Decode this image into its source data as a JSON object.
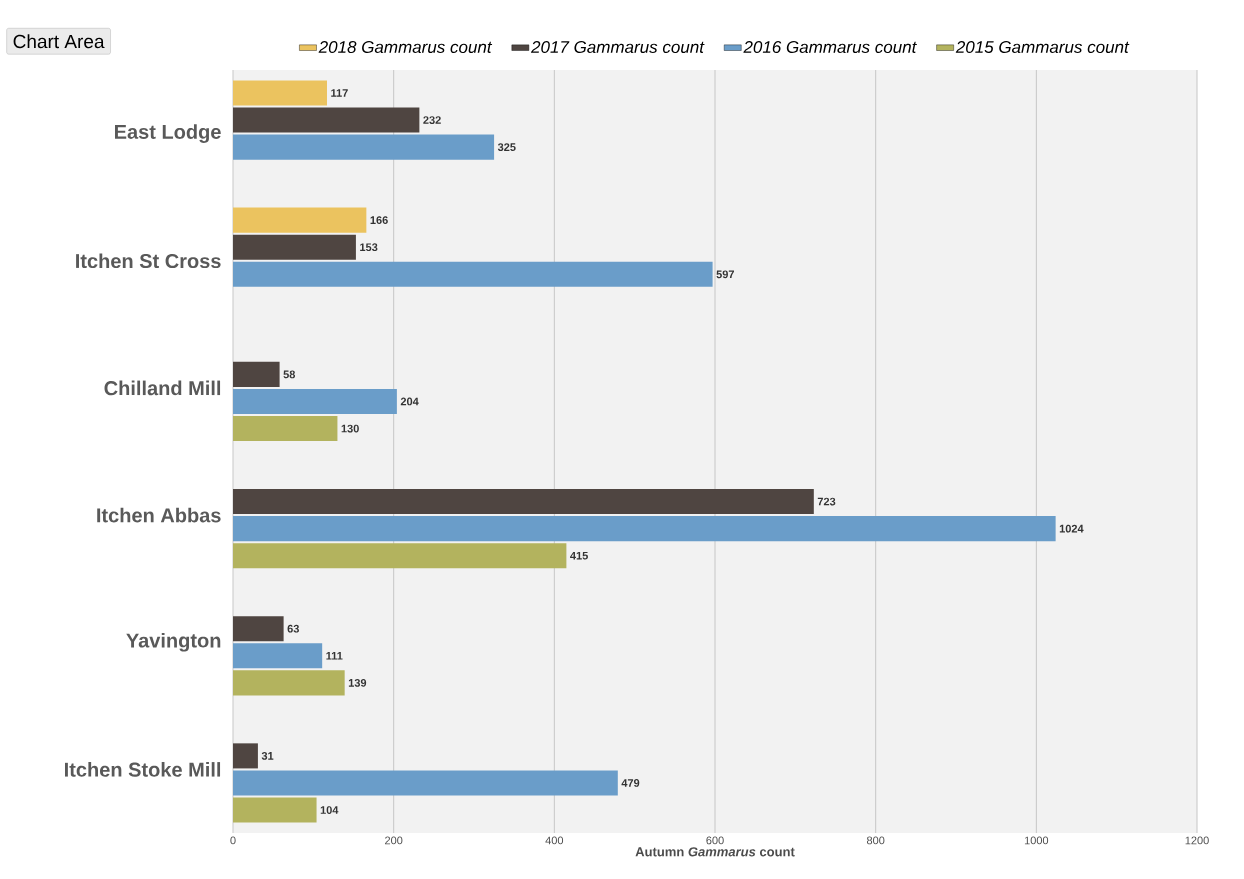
{
  "chart_data": {
    "type": "bar",
    "orientation": "horizontal",
    "categories": [
      "East Lodge",
      "Itchen St Cross",
      "Chilland Mill",
      "Itchen Abbas",
      "Yavington",
      "Itchen Stoke Mill"
    ],
    "series": [
      {
        "name": "2018 Gammarus count",
        "color": "#ebc35f",
        "values": [
          117,
          166,
          null,
          null,
          null,
          null
        ]
      },
      {
        "name": "2017 Gammarus count",
        "color": "#4f4541",
        "values": [
          232,
          153,
          58,
          723,
          63,
          31
        ]
      },
      {
        "name": "2016 Gammarus count",
        "color": "#6a9dc9",
        "values": [
          325,
          597,
          204,
          1024,
          111,
          479
        ]
      },
      {
        "name": "2015 Gammarus count",
        "color": "#b3b35e",
        "values": [
          null,
          null,
          130,
          415,
          139,
          104
        ]
      }
    ],
    "xlabel": "Autumn *Gammarus* count",
    "xlim": [
      0,
      1200
    ],
    "xticks": [
      0,
      200,
      400,
      600,
      800,
      1000,
      1200
    ],
    "grid": "x",
    "legend": "top",
    "data_labels": true,
    "annotations": [
      "Chart Area"
    ]
  }
}
